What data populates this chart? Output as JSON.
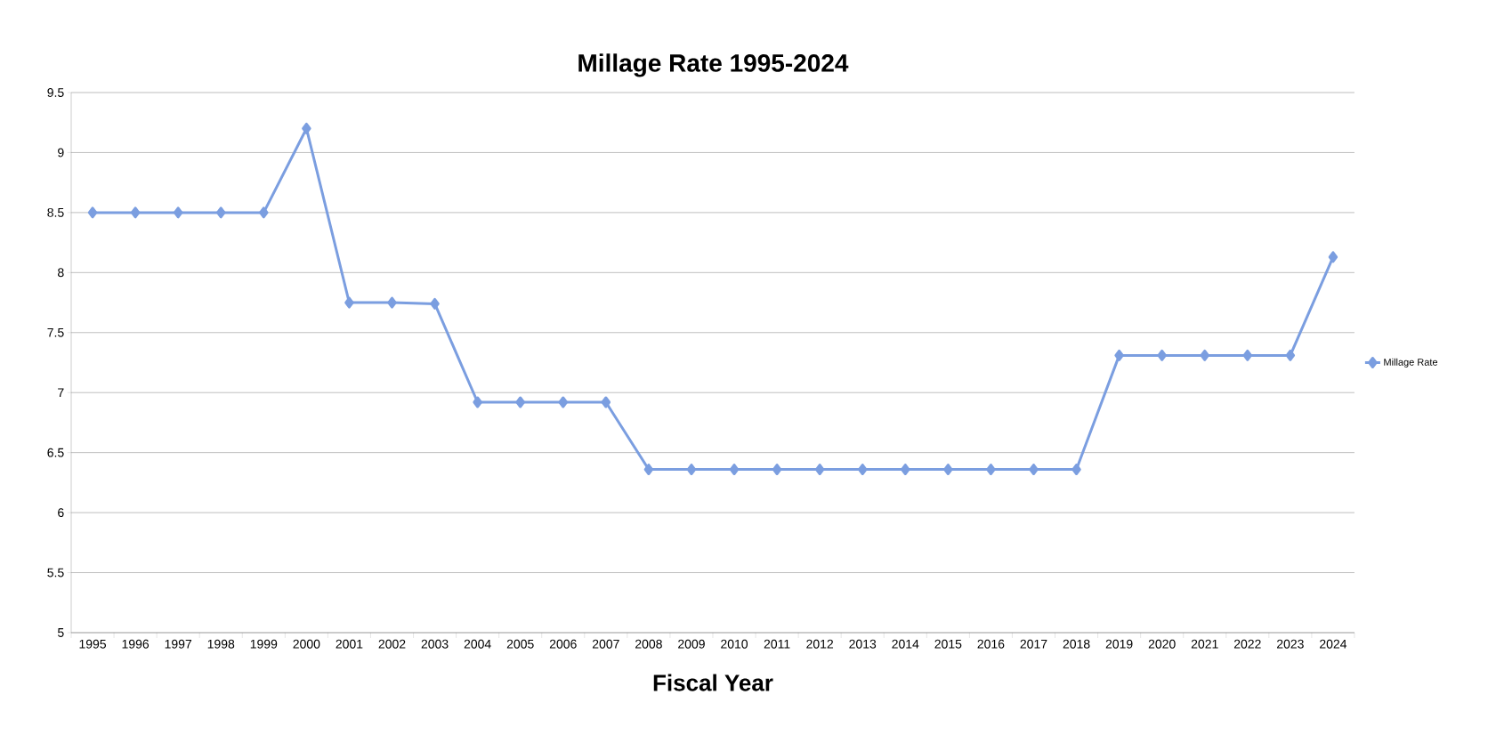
{
  "chart_data": {
    "type": "line",
    "title": "Millage Rate 1995-2024",
    "xlabel": "Fiscal Year",
    "categories": [
      "1995",
      "1996",
      "1997",
      "1998",
      "1999",
      "2000",
      "2001",
      "2002",
      "2003",
      "2004",
      "2005",
      "2006",
      "2007",
      "2008",
      "2009",
      "2010",
      "2011",
      "2012",
      "2013",
      "2014",
      "2015",
      "2016",
      "2017",
      "2018",
      "2019",
      "2020",
      "2021",
      "2022",
      "2023",
      "2024"
    ],
    "series": [
      {
        "name": "Millage Rate",
        "color": "#7b9ee0",
        "values": [
          8.5,
          8.5,
          8.5,
          8.5,
          8.5,
          9.2,
          7.75,
          7.75,
          7.74,
          6.92,
          6.92,
          6.92,
          6.92,
          6.36,
          6.36,
          6.36,
          6.36,
          6.36,
          6.36,
          6.36,
          6.36,
          6.36,
          6.36,
          6.36,
          7.31,
          7.31,
          7.31,
          7.31,
          7.31,
          8.13
        ]
      }
    ],
    "ylim": [
      5,
      9.5
    ],
    "yticks": [
      5,
      5.5,
      6,
      6.5,
      7,
      7.5,
      8,
      8.5,
      9,
      9.5
    ],
    "grid": "y",
    "legend": "right",
    "marker": "diamond",
    "line_style": "solid"
  }
}
